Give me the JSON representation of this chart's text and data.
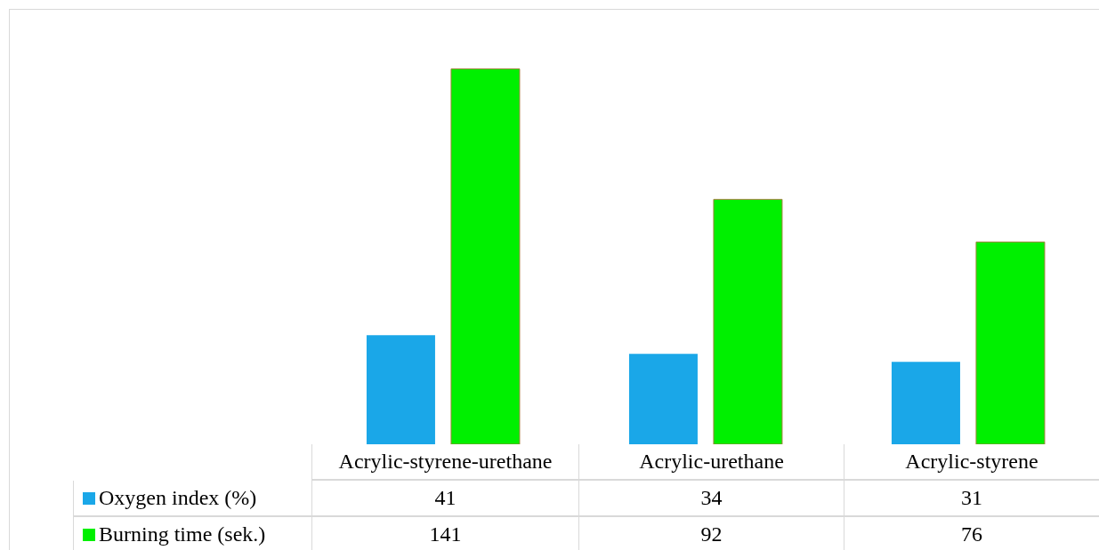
{
  "chart_data": {
    "type": "bar",
    "categories": [
      "Acrylic-styrene-urethane",
      "Acrylic-urethane",
      "Acrylic-styrene"
    ],
    "relative": false,
    "series": [
      {
        "name": "Oxygen index (%)",
        "color": "#1aa7e8",
        "values": [
          41,
          34,
          31
        ]
      },
      {
        "name": "Burning time (sek.)",
        "color": "#00f000",
        "values": [
          141,
          92,
          76
        ]
      }
    ],
    "data_labels": true,
    "legend": "bottom",
    "grid": false
  }
}
